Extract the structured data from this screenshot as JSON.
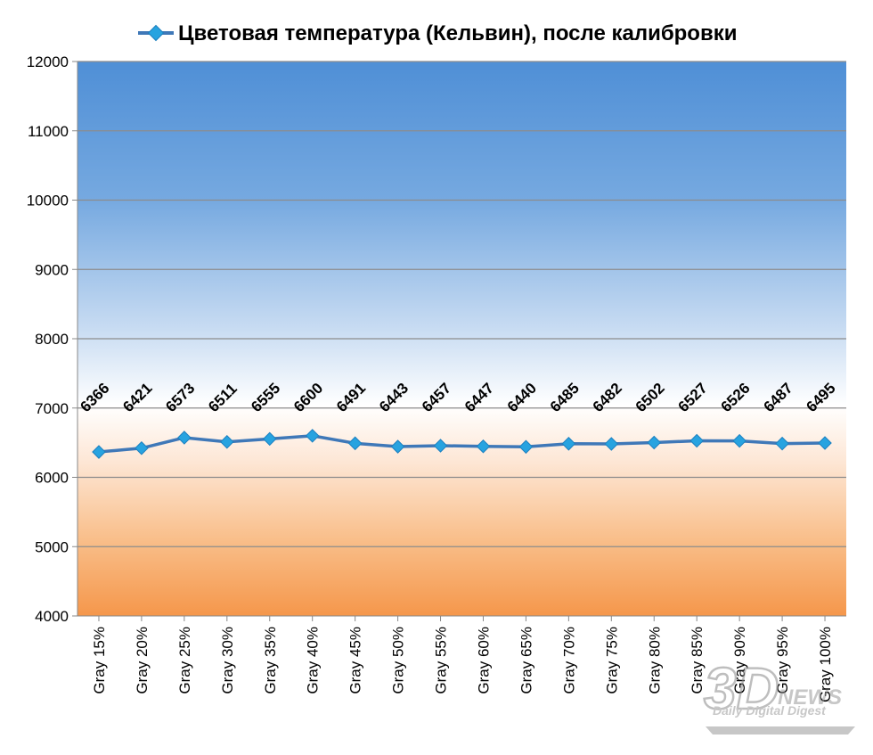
{
  "chart_data": {
    "type": "line",
    "title": "Цветовая температура (Кельвин), после калибровки",
    "categories": [
      "Gray 15%",
      "Gray 20%",
      "Gray 25%",
      "Gray 30%",
      "Gray 35%",
      "Gray 40%",
      "Gray 45%",
      "Gray 50%",
      "Gray 55%",
      "Gray 60%",
      "Gray 65%",
      "Gray 70%",
      "Gray 75%",
      "Gray 80%",
      "Gray 85%",
      "Gray 90%",
      "Gray 95%",
      "Gray 100%"
    ],
    "series": [
      {
        "name": "Цветовая температура (Кельвин), после калибровки",
        "values": [
          6366,
          6421,
          6573,
          6511,
          6555,
          6600,
          6491,
          6443,
          6457,
          6447,
          6440,
          6485,
          6482,
          6502,
          6527,
          6526,
          6487,
          6495
        ]
      }
    ],
    "ylim": [
      4000,
      12000
    ],
    "yticks": [
      4000,
      5000,
      6000,
      7000,
      8000,
      9000,
      10000,
      11000,
      12000
    ],
    "grid": true,
    "legend_position": "top",
    "line_color": "#3f78b8",
    "marker_color": "#27a3e0",
    "background_gradient": [
      "#4f8fd6",
      "#ffffff",
      "#f59a4f"
    ]
  },
  "watermark": {
    "logo_text": "3D",
    "news_text": "NEWS",
    "tagline": "Daily Digital Digest"
  }
}
